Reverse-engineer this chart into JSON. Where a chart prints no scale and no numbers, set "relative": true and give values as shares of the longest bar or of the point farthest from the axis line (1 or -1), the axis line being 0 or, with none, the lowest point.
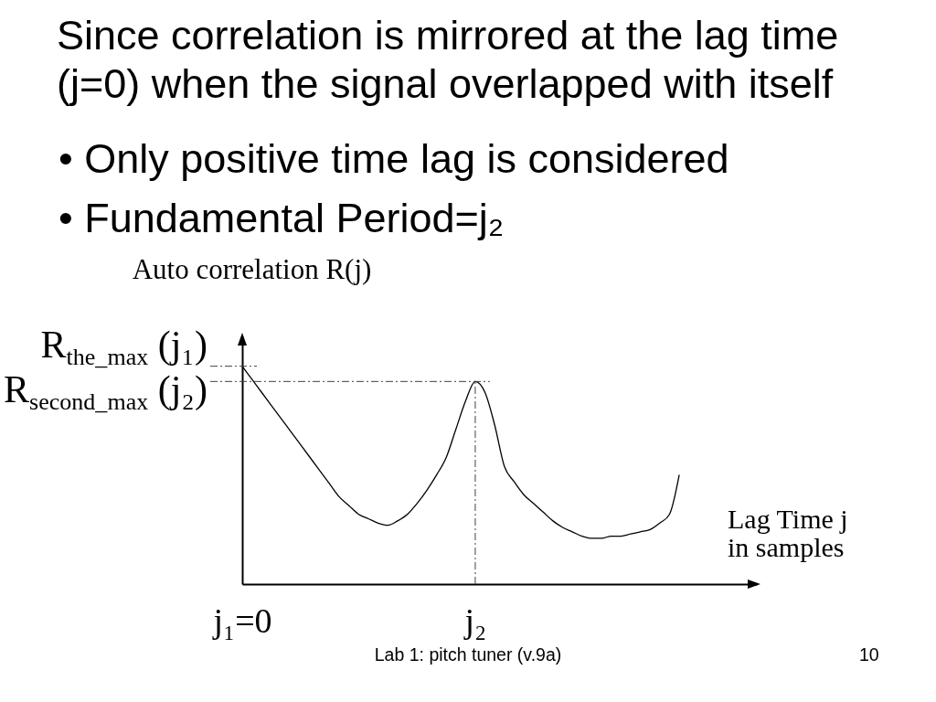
{
  "chart_data": {
    "type": "line",
    "title": "Since correlation is mirrored at the lag time (j=0) when the signal overlapped with itself",
    "xlabel": "Lag Time j in samples",
    "ylabel": "Auto correlation R(j)",
    "relative": true,
    "categories": [
      "j₁=0",
      null,
      null,
      null,
      null,
      null,
      null,
      null,
      null,
      null,
      null,
      null,
      null,
      null,
      null,
      null,
      null,
      null,
      null,
      null,
      null,
      null,
      null,
      null,
      "j₂",
      null,
      null,
      null,
      null,
      null,
      null,
      null,
      null,
      null,
      null,
      null,
      null,
      null,
      null,
      null,
      null,
      null,
      null,
      null,
      null,
      null,
      null,
      null,
      null,
      null,
      null,
      null,
      null,
      null
    ],
    "series": [
      {
        "color": "#000000",
        "values": [
          1,
          0.94,
          0.88,
          0.82,
          0.76,
          0.7,
          0.64,
          0.58,
          0.52,
          0.46,
          0.4,
          0.36,
          0.32,
          0.3,
          0.28,
          0.27,
          0.29,
          0.32,
          0.37,
          0.43,
          0.5,
          0.58,
          0.71,
          0.84,
          0.93,
          0.88,
          0.73,
          0.54,
          0.47,
          0.41,
          0.37,
          0.33,
          0.29,
          0.26,
          0.24,
          0.22,
          0.21,
          0.21,
          0.22,
          0.22,
          0.23,
          0.24,
          0.25,
          0.28,
          0.32,
          0.5,
          null,
          null,
          null,
          null,
          null,
          null,
          null,
          null
        ]
      }
    ],
    "ref_lines": [
      {
        "axis": "y",
        "value": 1,
        "label": "R$_{the_max}$ (j₁)",
        "color": "#404040",
        "line_style": "dashdot"
      },
      {
        "axis": "y",
        "value": 0.93,
        "label": "R$_{second_max}$ (j₂)",
        "color": "#404040",
        "line_style": "dashdot"
      },
      {
        "axis": "x",
        "value": "j₂",
        "color": "#404040",
        "line_style": "dashdot"
      }
    ],
    "annotations": [
      "• Only positive time lag is considered",
      "• Fundamental Period=j₂",
      "Lab 1: pitch tuner (v.9a)",
      "10"
    ]
  }
}
